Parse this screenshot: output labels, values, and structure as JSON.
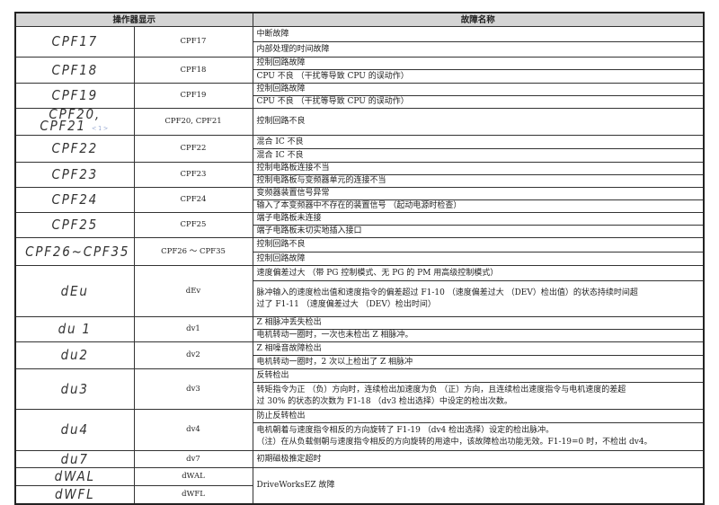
{
  "header": {
    "display": "操作器显示",
    "fault_name": "故障名称"
  },
  "rows": [
    {
      "display": "CPF17",
      "code": "CPF17",
      "names": [
        [
          "中断故障"
        ],
        [
          "内部处理的时间故障"
        ]
      ]
    },
    {
      "display": "CPF18",
      "code": "CPF18",
      "names": [
        [
          "控制回路故障"
        ],
        [
          "CPU 不良 （干扰等导致 CPU 的误动作）"
        ]
      ]
    },
    {
      "display": "CPF19",
      "code": "CPF19",
      "names": [
        [
          "控制回路故障"
        ],
        [
          "CPU 不良 （干扰等导致 CPU 的误动作）"
        ]
      ]
    },
    {
      "display": "CPF20, CPF21",
      "note": "<1>",
      "code": "CPF20, CPF21",
      "names": [
        [
          "控制回路不良"
        ]
      ]
    },
    {
      "display": "CPF22",
      "code": "CPF22",
      "names": [
        [
          "混合 IC 不良"
        ],
        [
          "混合 IC 不良"
        ]
      ]
    },
    {
      "display": "CPF23",
      "code": "CPF23",
      "names": [
        [
          "控制电路板连接不当"
        ],
        [
          "控制电路板与变频器单元的连接不当"
        ]
      ]
    },
    {
      "display": "CPF24",
      "code": "CPF24",
      "names": [
        [
          "变频器装置信号异常"
        ],
        [
          "输入了本变频器中不存在的装置信号 （起动电源时检查）"
        ]
      ]
    },
    {
      "display": "CPF25",
      "code": "CPF25",
      "names": [
        [
          "端子电路板未连接"
        ],
        [
          "端子电路板未切实地插入接口"
        ]
      ]
    },
    {
      "display": "CPF26~CPF35",
      "code": "CPF26 ～ CPF35",
      "names": [
        [
          "控制回路不良"
        ],
        [
          "控制回路故障"
        ]
      ]
    },
    {
      "display": "dEu",
      "code": "dEv",
      "names": [
        [
          "速度偏差过大 （带 PG 控制模式、无 PG 的 PM 用高级控制模式）"
        ],
        [
          "脉冲输入的速度检出值和速度指令的偏差超过 F1-10 （速度偏差过大 （DEV）检出值）的状态持续时间超",
          "过了 F1-11 （速度偏差过大 （DEV）检出时间）"
        ]
      ]
    },
    {
      "display": "du 1",
      "code": "dv1",
      "names": [
        [
          "Z 相脉冲丢失检出"
        ],
        [
          "电机转动一圈时，一次也未检出 Z 相脉冲。"
        ]
      ]
    },
    {
      "display": "du2",
      "code": "dv2",
      "names": [
        [
          "Z 相噪音故障检出"
        ],
        [
          "电机转动一圈时，2 次以上检出了 Z 相脉冲"
        ]
      ]
    },
    {
      "display": "du3",
      "code": "dv3",
      "names": [
        [
          "反转检出"
        ],
        [
          "转矩指令为正 （负）方向时，连续检出加速度为负 （正）方向，且连续检出速度指令与电机速度的差超",
          "过 30% 的状态的次数为 F1-18 （dv3 检出选择）中设定的检出次数。"
        ]
      ]
    },
    {
      "display": "du4",
      "code": "dv4",
      "names": [
        [
          "防止反转检出"
        ],
        [
          "电机朝着与速度指令相反的方向旋转了 F1-19 （dv4 检出选择）设定的检出脉冲。",
          "（注）在从负载侧朝与速度指令相反的方向旋转的用途中，该故障检出功能无效。F1-19=0 时，不检出 dv4。"
        ]
      ]
    },
    {
      "display": "du7",
      "code": "dv7",
      "names": [
        [
          "初期磁极推定超时"
        ]
      ]
    },
    {
      "display": "dWAL",
      "code": "dWAL",
      "names": [
        [
          "DriveWorksEZ 故障"
        ]
      ],
      "span": 2
    },
    {
      "display": "dWFL",
      "code": "dWFL",
      "names": []
    }
  ]
}
